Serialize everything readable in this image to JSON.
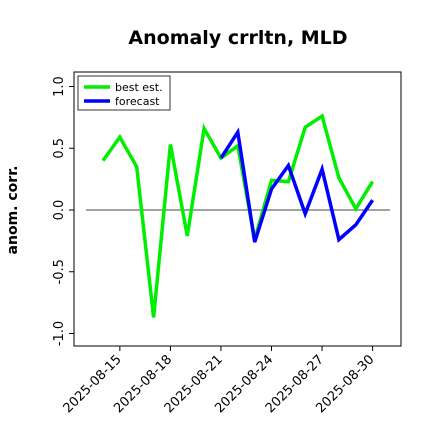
{
  "chart_data": {
    "type": "line",
    "title": "Anomaly crrltn, MLD",
    "xlabel": "",
    "ylabel": "anom. corr.",
    "ylim": [
      -1.05,
      1.1
    ],
    "yticks": [
      -1.0,
      -0.5,
      0.0,
      0.5,
      1.0
    ],
    "ytick_labels": [
      "-1.0",
      "-0.5",
      "0.0",
      "0.5",
      "1.0"
    ],
    "x": [
      "2025-08-14",
      "2025-08-15",
      "2025-08-16",
      "2025-08-17",
      "2025-08-18",
      "2025-08-19",
      "2025-08-20",
      "2025-08-21",
      "2025-08-22",
      "2025-08-23",
      "2025-08-24",
      "2025-08-25",
      "2025-08-26",
      "2025-08-27",
      "2025-08-28",
      "2025-08-29",
      "2025-08-30"
    ],
    "xticks": [
      "2025-08-15",
      "2025-08-18",
      "2025-08-21",
      "2025-08-24",
      "2025-08-27",
      "2025-08-30"
    ],
    "highlighted_tick": "2025-08-21",
    "highlight_color": "#228b22",
    "reference_line_y": 0.0,
    "legend_position": "top-left",
    "series": [
      {
        "name": "best est.",
        "color": "#00ee00",
        "values": [
          0.4,
          0.59,
          0.35,
          -0.87,
          0.53,
          -0.21,
          0.66,
          0.42,
          0.52,
          -0.24,
          0.24,
          0.23,
          0.67,
          0.76,
          0.26,
          0.01,
          0.23
        ]
      },
      {
        "name": "forecast",
        "color": "#0000ff",
        "values": [
          null,
          null,
          null,
          null,
          null,
          null,
          null,
          0.42,
          0.63,
          -0.26,
          0.17,
          0.36,
          -0.03,
          0.33,
          -0.24,
          -0.12,
          0.08
        ]
      }
    ]
  }
}
